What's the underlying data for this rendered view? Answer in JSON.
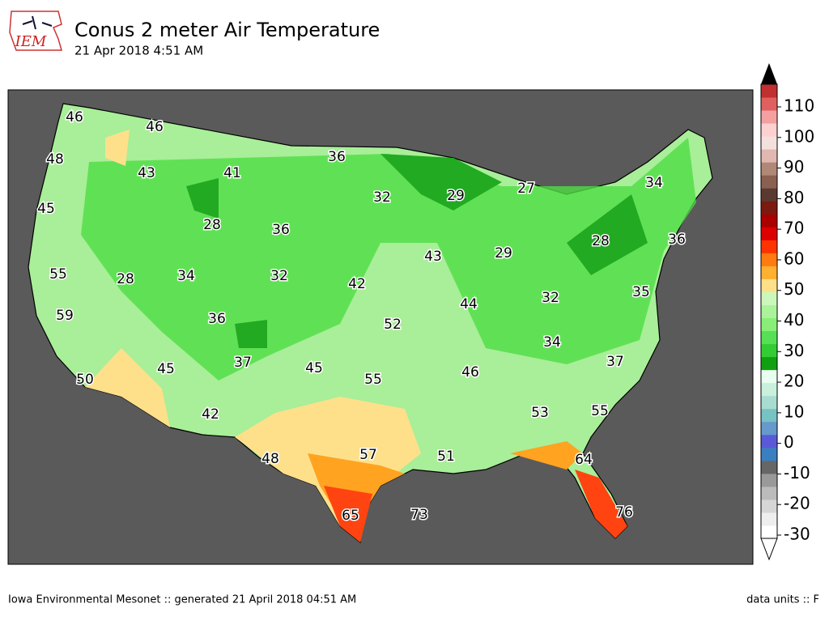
{
  "header": {
    "logo": "IEM",
    "title": "Conus 2 meter Air Temperature",
    "subtitle": "21 Apr 2018 4:51 AM"
  },
  "stations": [
    46,
    46,
    48,
    43,
    41,
    36,
    32,
    29,
    27,
    34,
    45,
    28,
    36,
    36,
    28,
    29,
    43,
    55,
    28,
    34,
    32,
    42,
    35,
    32,
    44,
    59,
    36,
    52,
    34,
    37,
    45,
    37,
    46,
    45,
    50,
    55,
    53,
    55,
    42,
    48,
    57,
    51,
    64,
    65,
    73,
    76
  ],
  "colorbar": {
    "ticks": [
      -30,
      -20,
      -10,
      0,
      10,
      20,
      30,
      40,
      50,
      60,
      70,
      80,
      90,
      100,
      110
    ]
  },
  "footer": {
    "left": "Iowa Environmental Mesonet :: generated 21 April 2018 04:51 AM",
    "right": "data units :: F"
  }
}
